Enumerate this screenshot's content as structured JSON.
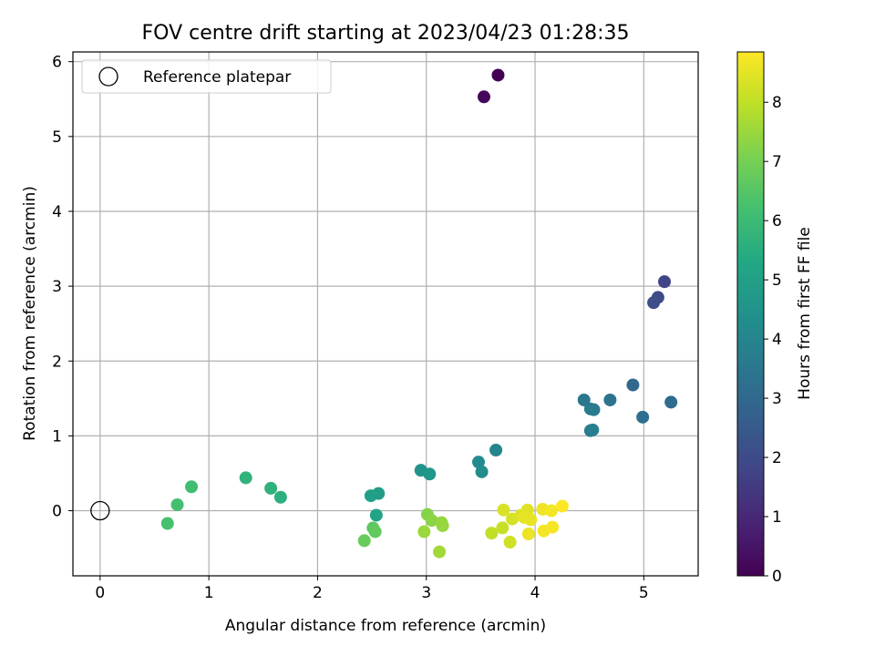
{
  "chart_data": {
    "type": "scatter",
    "title": "FOV centre drift starting at 2023/04/23 01:28:35",
    "xlabel": "Angular distance from reference (arcmin)",
    "ylabel": "Rotation from reference (arcmin)",
    "xlim": [
      -0.25,
      5.5
    ],
    "ylim": [
      -0.87,
      6.13
    ],
    "xticks": [
      0,
      1,
      2,
      3,
      4,
      5
    ],
    "yticks": [
      0,
      1,
      2,
      3,
      4,
      5,
      6
    ],
    "grid": true,
    "legend": {
      "placement": "upper-left",
      "entries": [
        "Reference platepar"
      ]
    },
    "reference_point": {
      "x": 0,
      "y": 0,
      "label": "Reference platepar"
    },
    "colorbar": {
      "label": "Hours from first FF file",
      "colormap": "viridis",
      "range": [
        0,
        8.85
      ],
      "ticks": [
        0,
        1,
        2,
        3,
        4,
        5,
        6,
        7,
        8
      ]
    },
    "points": [
      {
        "x": 3.66,
        "y": 5.82,
        "hours": 0.0
      },
      {
        "x": 3.53,
        "y": 5.53,
        "hours": 0.15
      },
      {
        "x": 5.19,
        "y": 3.06,
        "hours": 1.8
      },
      {
        "x": 5.13,
        "y": 2.85,
        "hours": 2.0
      },
      {
        "x": 5.09,
        "y": 2.78,
        "hours": 2.1
      },
      {
        "x": 4.9,
        "y": 1.68,
        "hours": 3.0
      },
      {
        "x": 5.25,
        "y": 1.45,
        "hours": 3.1
      },
      {
        "x": 4.99,
        "y": 1.25,
        "hours": 3.2
      },
      {
        "x": 4.69,
        "y": 1.48,
        "hours": 3.4
      },
      {
        "x": 4.45,
        "y": 1.48,
        "hours": 3.5
      },
      {
        "x": 4.51,
        "y": 1.36,
        "hours": 3.6
      },
      {
        "x": 4.54,
        "y": 1.35,
        "hours": 3.65
      },
      {
        "x": 4.51,
        "y": 1.07,
        "hours": 3.7
      },
      {
        "x": 4.53,
        "y": 1.08,
        "hours": 3.75
      },
      {
        "x": 3.64,
        "y": 0.81,
        "hours": 4.0
      },
      {
        "x": 3.48,
        "y": 0.65,
        "hours": 4.2
      },
      {
        "x": 3.51,
        "y": 0.52,
        "hours": 4.3
      },
      {
        "x": 2.95,
        "y": 0.54,
        "hours": 4.5
      },
      {
        "x": 3.03,
        "y": 0.49,
        "hours": 4.6
      },
      {
        "x": 2.56,
        "y": 0.23,
        "hours": 4.9
      },
      {
        "x": 2.49,
        "y": 0.2,
        "hours": 5.0
      },
      {
        "x": 2.54,
        "y": -0.06,
        "hours": 5.1
      },
      {
        "x": 1.66,
        "y": 0.18,
        "hours": 5.6
      },
      {
        "x": 1.57,
        "y": 0.3,
        "hours": 5.65
      },
      {
        "x": 1.34,
        "y": 0.44,
        "hours": 5.7
      },
      {
        "x": 0.84,
        "y": 0.32,
        "hours": 6.1
      },
      {
        "x": 0.71,
        "y": 0.08,
        "hours": 6.2
      },
      {
        "x": 0.62,
        "y": -0.17,
        "hours": 6.25
      },
      {
        "x": 2.51,
        "y": -0.23,
        "hours": 6.6
      },
      {
        "x": 2.53,
        "y": -0.28,
        "hours": 6.7
      },
      {
        "x": 2.43,
        "y": -0.4,
        "hours": 6.8
      },
      {
        "x": 3.01,
        "y": -0.05,
        "hours": 7.2
      },
      {
        "x": 3.05,
        "y": -0.13,
        "hours": 7.3
      },
      {
        "x": 3.14,
        "y": -0.16,
        "hours": 7.4
      },
      {
        "x": 3.15,
        "y": -0.2,
        "hours": 7.45
      },
      {
        "x": 2.98,
        "y": -0.28,
        "hours": 7.5
      },
      {
        "x": 3.12,
        "y": -0.55,
        "hours": 7.6
      },
      {
        "x": 3.6,
        "y": -0.3,
        "hours": 8.0
      },
      {
        "x": 3.7,
        "y": -0.23,
        "hours": 8.1
      },
      {
        "x": 3.77,
        "y": -0.42,
        "hours": 8.2
      },
      {
        "x": 3.79,
        "y": -0.11,
        "hours": 8.3
      },
      {
        "x": 3.71,
        "y": 0.01,
        "hours": 8.35
      },
      {
        "x": 3.87,
        "y": -0.06,
        "hours": 8.4
      },
      {
        "x": 3.93,
        "y": 0.01,
        "hours": 8.45
      },
      {
        "x": 3.9,
        "y": -0.09,
        "hours": 8.5
      },
      {
        "x": 3.96,
        "y": -0.12,
        "hours": 8.55
      },
      {
        "x": 3.94,
        "y": -0.31,
        "hours": 8.6
      },
      {
        "x": 4.07,
        "y": 0.02,
        "hours": 8.65
      },
      {
        "x": 4.15,
        "y": 0.0,
        "hours": 8.7
      },
      {
        "x": 4.08,
        "y": -0.27,
        "hours": 8.72
      },
      {
        "x": 4.16,
        "y": -0.22,
        "hours": 8.76
      },
      {
        "x": 4.25,
        "y": 0.06,
        "hours": 8.85
      }
    ]
  }
}
